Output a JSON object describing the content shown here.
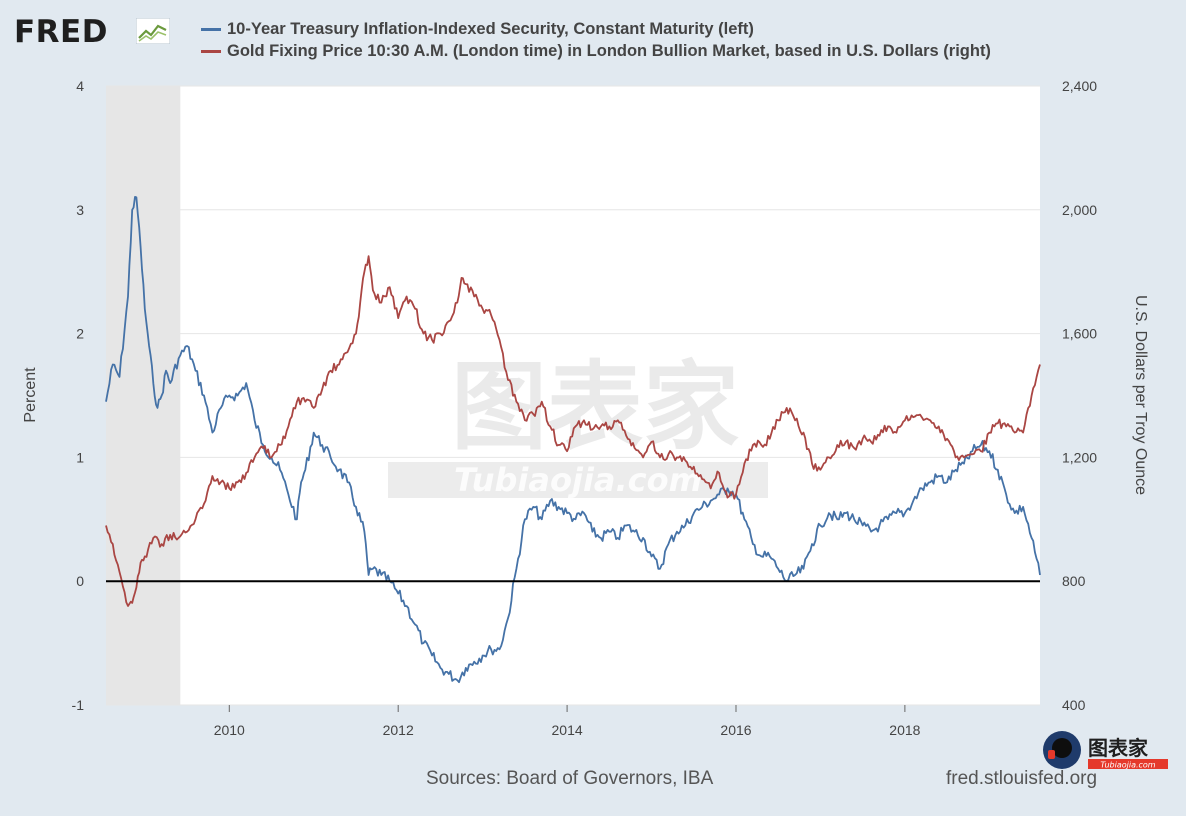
{
  "brand": {
    "logo_text": "FRED",
    "logo_icon": "chart-line-icon"
  },
  "legend": [
    {
      "label": "10-Year Treasury Inflation-Indexed Security, Constant Maturity (left)",
      "color": "#4572a7"
    },
    {
      "label": "Gold Fixing Price 10:30 A.M. (London time) in London Bullion Market, based in U.S. Dollars (right)",
      "color": "#aa4643"
    }
  ],
  "footer": {
    "source": "Sources: Board of Governors, IBA",
    "url": "fred.stlouisfed.org"
  },
  "watermark": {
    "main": "图表家",
    "sub": "Tubiaojia.com",
    "corner_main": "图表家",
    "corner_sub": "Tubiaojia.com"
  },
  "chart_data": {
    "type": "line",
    "x_ticks": [
      2010,
      2012,
      2014,
      2016,
      2018
    ],
    "x_range": [
      2008.54,
      2019.6
    ],
    "y_left": {
      "label": "Percent",
      "range": [
        -1,
        4
      ],
      "ticks": [
        "4",
        "3",
        "2",
        "1",
        "0",
        "-1"
      ],
      "tick_values": [
        4,
        3,
        2,
        1,
        0,
        -1
      ]
    },
    "y_right": {
      "label": "U.S. Dollars per Troy Ounce",
      "range": [
        400,
        2400
      ],
      "ticks": [
        "2,400",
        "2,000",
        "1,600",
        "1,200",
        "800",
        "400"
      ],
      "tick_values": [
        2400,
        2000,
        1600,
        1200,
        800,
        400
      ]
    },
    "recession_shading": {
      "start": 2008.54,
      "end": 2009.42
    },
    "zero_line": 0,
    "grid": true,
    "series": [
      {
        "name": "10-Year Treasury Inflation-Indexed Security, Constant Maturity (left)",
        "axis": "left",
        "color": "#4572a7",
        "x": [
          2008.54,
          2008.62,
          2008.7,
          2008.8,
          2008.85,
          2008.9,
          2008.95,
          2009.0,
          2009.05,
          2009.1,
          2009.15,
          2009.2,
          2009.25,
          2009.3,
          2009.4,
          2009.5,
          2009.6,
          2009.7,
          2009.8,
          2009.9,
          2010.0,
          2010.1,
          2010.2,
          2010.3,
          2010.4,
          2010.5,
          2010.6,
          2010.7,
          2010.8,
          2010.85,
          2010.9,
          2011.0,
          2011.1,
          2011.2,
          2011.3,
          2011.4,
          2011.5,
          2011.6,
          2011.65,
          2011.7,
          2011.8,
          2011.9,
          2012.0,
          2012.1,
          2012.2,
          2012.3,
          2012.4,
          2012.5,
          2012.6,
          2012.7,
          2012.8,
          2012.9,
          2013.0,
          2013.1,
          2013.2,
          2013.3,
          2013.4,
          2013.5,
          2013.6,
          2013.7,
          2013.8,
          2013.9,
          2014.0,
          2014.1,
          2014.2,
          2014.3,
          2014.4,
          2014.5,
          2014.6,
          2014.7,
          2014.8,
          2014.9,
          2015.0,
          2015.1,
          2015.2,
          2015.3,
          2015.4,
          2015.5,
          2015.6,
          2015.7,
          2015.8,
          2015.9,
          2016.0,
          2016.1,
          2016.2,
          2016.3,
          2016.4,
          2016.5,
          2016.6,
          2016.7,
          2016.8,
          2016.9,
          2017.0,
          2017.1,
          2017.2,
          2017.3,
          2017.4,
          2017.5,
          2017.6,
          2017.7,
          2017.8,
          2017.9,
          2018.0,
          2018.1,
          2018.2,
          2018.3,
          2018.4,
          2018.5,
          2018.6,
          2018.7,
          2018.8,
          2018.9,
          2019.0,
          2019.1,
          2019.2,
          2019.3,
          2019.4,
          2019.5,
          2019.6
        ],
        "values": [
          1.45,
          1.75,
          1.65,
          2.3,
          3.0,
          3.1,
          2.7,
          2.2,
          1.9,
          1.6,
          1.4,
          1.5,
          1.7,
          1.6,
          1.8,
          1.9,
          1.7,
          1.5,
          1.2,
          1.4,
          1.5,
          1.5,
          1.6,
          1.3,
          1.1,
          1.0,
          0.9,
          0.7,
          0.5,
          0.8,
          0.9,
          1.2,
          1.1,
          1.0,
          0.9,
          0.8,
          0.6,
          0.4,
          0.05,
          0.1,
          0.05,
          0.0,
          -0.1,
          -0.2,
          -0.35,
          -0.5,
          -0.6,
          -0.7,
          -0.75,
          -0.8,
          -0.7,
          -0.65,
          -0.6,
          -0.55,
          -0.55,
          -0.3,
          0.1,
          0.5,
          0.6,
          0.5,
          0.65,
          0.6,
          0.55,
          0.5,
          0.55,
          0.4,
          0.35,
          0.4,
          0.35,
          0.45,
          0.4,
          0.35,
          0.2,
          0.1,
          0.3,
          0.4,
          0.45,
          0.55,
          0.6,
          0.65,
          0.7,
          0.75,
          0.7,
          0.5,
          0.3,
          0.2,
          0.2,
          0.1,
          0.0,
          0.05,
          0.1,
          0.3,
          0.45,
          0.55,
          0.5,
          0.55,
          0.5,
          0.45,
          0.4,
          0.45,
          0.5,
          0.55,
          0.55,
          0.65,
          0.75,
          0.8,
          0.85,
          0.8,
          0.9,
          0.95,
          1.05,
          1.1,
          1.05,
          0.9,
          0.7,
          0.55,
          0.6,
          0.35,
          0.05
        ]
      },
      {
        "name": "Gold Fixing Price 10:30 A.M. (London time) in London Bullion Market, based in U.S. Dollars (right)",
        "axis": "right",
        "color": "#aa4643",
        "x": [
          2008.54,
          2008.62,
          2008.7,
          2008.8,
          2008.85,
          2008.9,
          2008.95,
          2009.0,
          2009.1,
          2009.2,
          2009.3,
          2009.4,
          2009.5,
          2009.6,
          2009.7,
          2009.8,
          2009.9,
          2010.0,
          2010.1,
          2010.2,
          2010.3,
          2010.4,
          2010.5,
          2010.6,
          2010.7,
          2010.8,
          2010.9,
          2011.0,
          2011.1,
          2011.2,
          2011.3,
          2011.4,
          2011.5,
          2011.55,
          2011.6,
          2011.65,
          2011.7,
          2011.8,
          2011.9,
          2012.0,
          2012.1,
          2012.2,
          2012.3,
          2012.4,
          2012.5,
          2012.6,
          2012.7,
          2012.75,
          2012.8,
          2012.9,
          2013.0,
          2013.1,
          2013.2,
          2013.3,
          2013.4,
          2013.5,
          2013.6,
          2013.7,
          2013.8,
          2013.9,
          2014.0,
          2014.1,
          2014.2,
          2014.3,
          2014.4,
          2014.5,
          2014.6,
          2014.7,
          2014.8,
          2014.9,
          2015.0,
          2015.1,
          2015.2,
          2015.3,
          2015.4,
          2015.5,
          2015.6,
          2015.7,
          2015.8,
          2015.9,
          2016.0,
          2016.1,
          2016.2,
          2016.3,
          2016.4,
          2016.5,
          2016.6,
          2016.7,
          2016.8,
          2016.9,
          2017.0,
          2017.1,
          2017.2,
          2017.3,
          2017.4,
          2017.5,
          2017.6,
          2017.7,
          2017.8,
          2017.9,
          2018.0,
          2018.1,
          2018.2,
          2018.3,
          2018.4,
          2018.5,
          2018.6,
          2018.7,
          2018.8,
          2018.9,
          2019.0,
          2019.1,
          2019.2,
          2019.3,
          2019.4,
          2019.5,
          2019.6
        ],
        "values": [
          980,
          920,
          830,
          720,
          730,
          780,
          860,
          880,
          940,
          920,
          950,
          940,
          960,
          1000,
          1050,
          1140,
          1120,
          1100,
          1120,
          1150,
          1200,
          1230,
          1200,
          1240,
          1300,
          1380,
          1380,
          1360,
          1420,
          1480,
          1500,
          1540,
          1600,
          1700,
          1800,
          1850,
          1740,
          1700,
          1750,
          1650,
          1720,
          1680,
          1600,
          1580,
          1600,
          1640,
          1700,
          1780,
          1760,
          1720,
          1680,
          1660,
          1580,
          1450,
          1380,
          1320,
          1340,
          1380,
          1300,
          1240,
          1220,
          1300,
          1320,
          1290,
          1300,
          1300,
          1320,
          1270,
          1230,
          1200,
          1250,
          1200,
          1210,
          1200,
          1190,
          1170,
          1130,
          1100,
          1150,
          1070,
          1080,
          1180,
          1240,
          1240,
          1260,
          1320,
          1360,
          1320,
          1280,
          1180,
          1160,
          1200,
          1240,
          1250,
          1230,
          1260,
          1250,
          1270,
          1300,
          1280,
          1320,
          1330,
          1330,
          1320,
          1300,
          1260,
          1200,
          1200,
          1210,
          1220,
          1280,
          1310,
          1300,
          1280,
          1280,
          1400,
          1500
        ]
      }
    ]
  }
}
